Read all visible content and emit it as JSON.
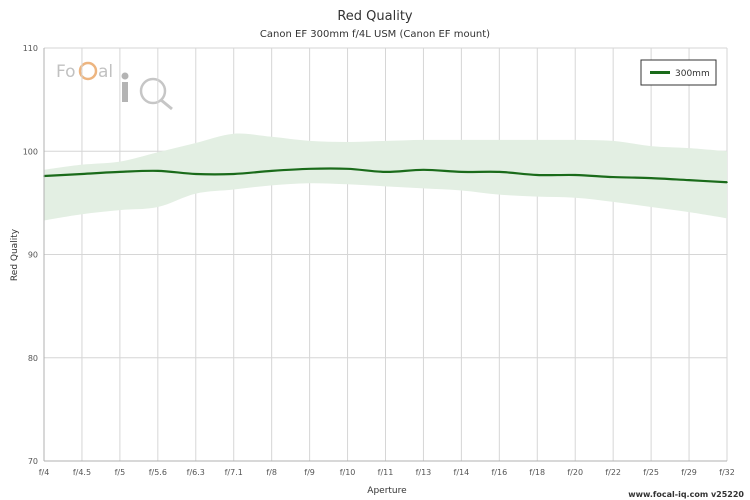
{
  "chart_data": {
    "type": "line",
    "title": "Red Quality",
    "subtitle": "Canon EF 300mm f/4L USM (Canon EF mount)",
    "xlabel": "Aperture",
    "ylabel": "Red Quality",
    "ylim": [
      70,
      110
    ],
    "yticks": [
      70,
      80,
      90,
      100,
      110
    ],
    "categories": [
      "f/4",
      "f/4.5",
      "f/5",
      "f/5.6",
      "f/6.3",
      "f/7.1",
      "f/8",
      "f/9",
      "f/10",
      "f/11",
      "f/13",
      "f/14",
      "f/16",
      "f/18",
      "f/20",
      "f/22",
      "f/25",
      "f/29",
      "f/32"
    ],
    "grid": true,
    "legend_position": "top-right",
    "series": [
      {
        "name": "300mm",
        "color": "#1a6b1a",
        "values": [
          97.6,
          97.8,
          98.0,
          98.1,
          97.8,
          97.8,
          98.1,
          98.3,
          98.3,
          98.0,
          98.2,
          98.0,
          98.0,
          97.7,
          97.7,
          97.5,
          97.4,
          97.2,
          97.0
        ],
        "band_upper": [
          98.2,
          98.7,
          99.0,
          99.9,
          100.8,
          101.7,
          101.4,
          101.0,
          100.9,
          101.0,
          101.1,
          101.1,
          101.1,
          101.1,
          101.1,
          101.0,
          100.5,
          100.3,
          100.0
        ],
        "band_lower": [
          93.3,
          93.9,
          94.3,
          94.6,
          95.9,
          96.3,
          96.7,
          96.9,
          96.8,
          96.6,
          96.4,
          96.2,
          95.8,
          95.6,
          95.5,
          95.1,
          94.6,
          94.1,
          93.5
        ],
        "band_color": "#e3efe3"
      }
    ]
  },
  "watermark": {
    "logo_text": "FoCal iQ",
    "logo_color_letters": "#9a9a9a",
    "logo_accent": "#e07a1a"
  },
  "credit": "www.focal-iq.com  v25220"
}
